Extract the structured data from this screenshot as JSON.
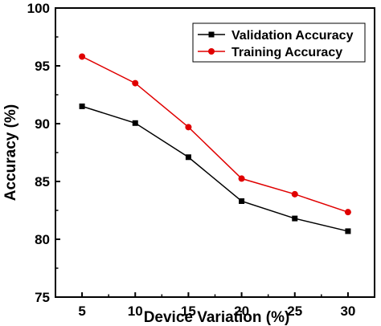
{
  "chart_data": {
    "type": "line",
    "xlabel": "Device Variation (%)",
    "ylabel": "Accuracy (%)",
    "x": [
      5,
      10,
      15,
      20,
      25,
      30
    ],
    "xlim": [
      2.5,
      32.5
    ],
    "ylim": [
      75,
      100
    ],
    "xticks": [
      5,
      10,
      15,
      20,
      25,
      30
    ],
    "yticks": [
      75,
      80,
      85,
      90,
      95,
      100
    ],
    "grid": false,
    "legend_position": "top-right",
    "series": [
      {
        "name": "Validation Accuracy",
        "color": "#000000",
        "marker": "square",
        "values": [
          91.5,
          90.05,
          87.1,
          83.3,
          81.8,
          80.7
        ]
      },
      {
        "name": "Training Accuracy",
        "color": "#e00000",
        "marker": "circle",
        "values": [
          95.8,
          93.5,
          89.7,
          85.25,
          83.9,
          82.35
        ]
      }
    ]
  }
}
